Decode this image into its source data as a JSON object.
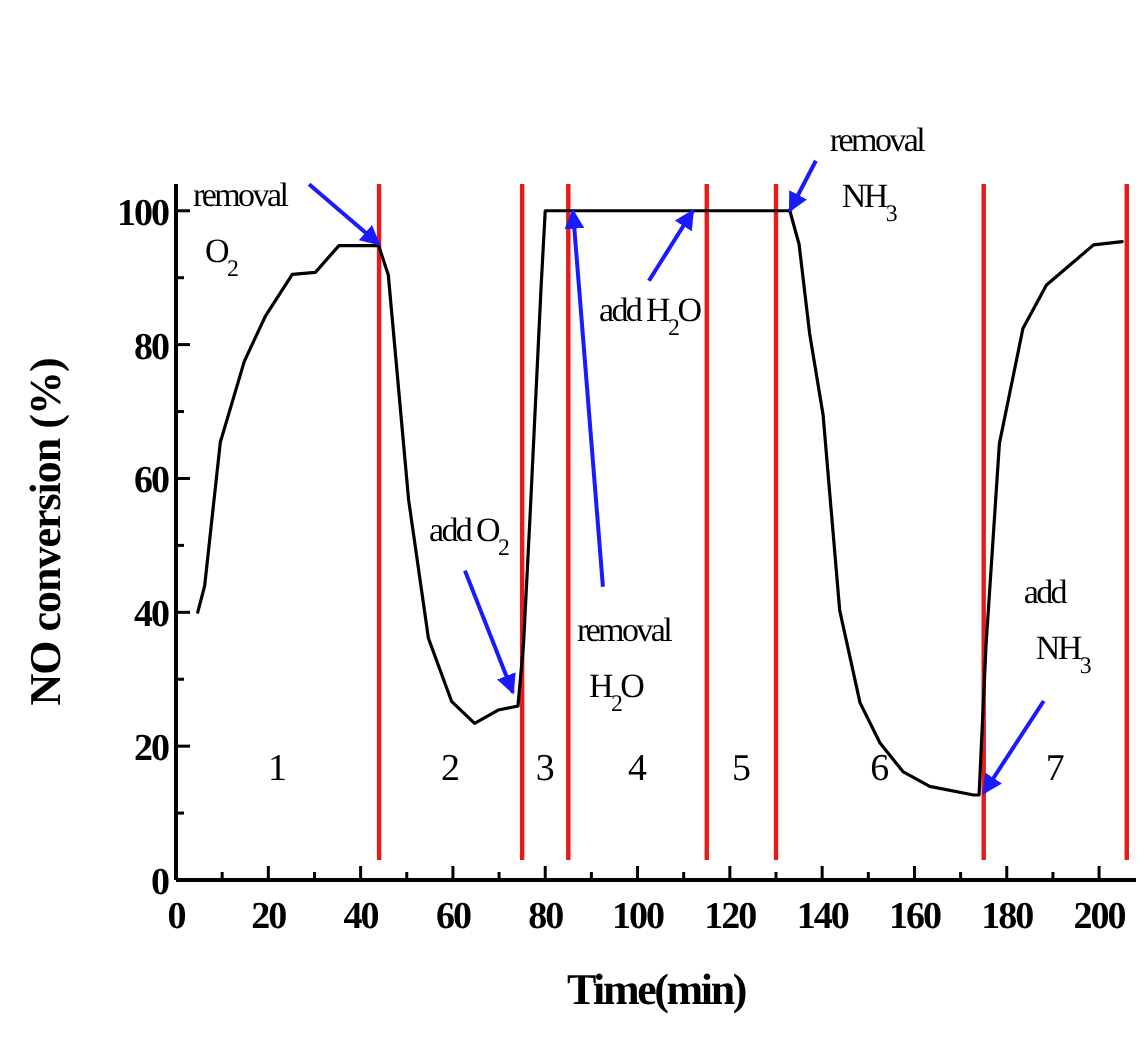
{
  "chart_data": {
    "type": "line",
    "xlabel": "Time(min)",
    "ylabel": "NO conversion (%)",
    "xlim": [
      0,
      208
    ],
    "ylim": [
      0,
      104
    ],
    "xticks": [
      0,
      {
        "value": 10,
        "label": null
      },
      20,
      {
        "value": 30,
        "label": null
      },
      40,
      {
        "value": 50,
        "label": null
      },
      60,
      {
        "value": 70,
        "label": null
      },
      80,
      {
        "value": 90,
        "label": null
      },
      100,
      {
        "value": 110,
        "label": null
      },
      120,
      {
        "value": 130,
        "label": null
      },
      140,
      {
        "value": 150,
        "label": null
      },
      160,
      {
        "value": 170,
        "label": null
      },
      180,
      {
        "value": 190,
        "label": null
      },
      200
    ],
    "yticks": [
      0,
      {
        "value": 10,
        "label": null
      },
      20,
      {
        "value": 30,
        "label": null
      },
      40,
      {
        "value": 50,
        "label": null
      },
      60,
      {
        "value": 70,
        "label": null
      },
      80,
      {
        "value": 90,
        "label": null
      },
      100
    ],
    "grid": false,
    "marker": "none",
    "line_style": "solid",
    "series": [
      {
        "color": "#000000",
        "x": [
          4.7,
          6.2,
          9.6,
          14.8,
          19.4,
          25.2,
          30.2,
          35.3,
          43.9,
          46,
          50.4,
          54.7,
          59.7,
          64.7,
          69.8,
          74.1,
          75.3,
          76.7,
          79.1,
          80,
          100,
          120,
          133,
          135,
          137.3,
          140.2,
          143.8,
          148.2,
          152.5,
          157.5,
          163.3,
          172.8,
          174,
          175.5,
          178.4,
          183.5,
          188.6,
          198.8,
          205
        ],
        "values": [
          40,
          43.9,
          65.4,
          77.5,
          84.3,
          90.5,
          90.8,
          94.8,
          94.8,
          90.4,
          56.8,
          36.1,
          26.7,
          23.4,
          25.4,
          26,
          35.3,
          54.2,
          88.6,
          100,
          100,
          100,
          100,
          95,
          81.6,
          69.5,
          40.3,
          26.5,
          20.5,
          16.2,
          14,
          12.7,
          12.7,
          35,
          65.2,
          82.4,
          88.9,
          94.9,
          95.4
        ]
      }
    ],
    "ref_lines": [
      {
        "axis": "x",
        "value": 44,
        "color": "#e8191a"
      },
      {
        "axis": "x",
        "value": 75,
        "color": "#e8191a"
      },
      {
        "axis": "x",
        "value": 85,
        "color": "#e8191a"
      },
      {
        "axis": "x",
        "value": 115,
        "color": "#e8191a"
      },
      {
        "axis": "x",
        "value": 130,
        "color": "#e8191a"
      },
      {
        "axis": "x",
        "value": 175,
        "color": "#e8191a"
      },
      {
        "axis": "x",
        "value": 206,
        "color": "#e8191a"
      }
    ],
    "annotations": [
      {
        "text": "removal\nO$_{2}$",
        "x": 44,
        "y": 95
      },
      {
        "text": "add O$_{2}$",
        "x": 73,
        "y": 28
      },
      {
        "text": "removal\nH$_{2}$O",
        "x": 86,
        "y": 100
      },
      {
        "text": "add H$_{2}$O",
        "x": 112,
        "y": 100
      },
      {
        "text": "removal\nNH$_{3}$",
        "x": 133,
        "y": 100
      },
      {
        "text": "add\nNH$_{3}$",
        "x": 175,
        "y": 13
      },
      "1",
      "2",
      "3",
      "4",
      "5",
      "6",
      "7"
    ]
  }
}
